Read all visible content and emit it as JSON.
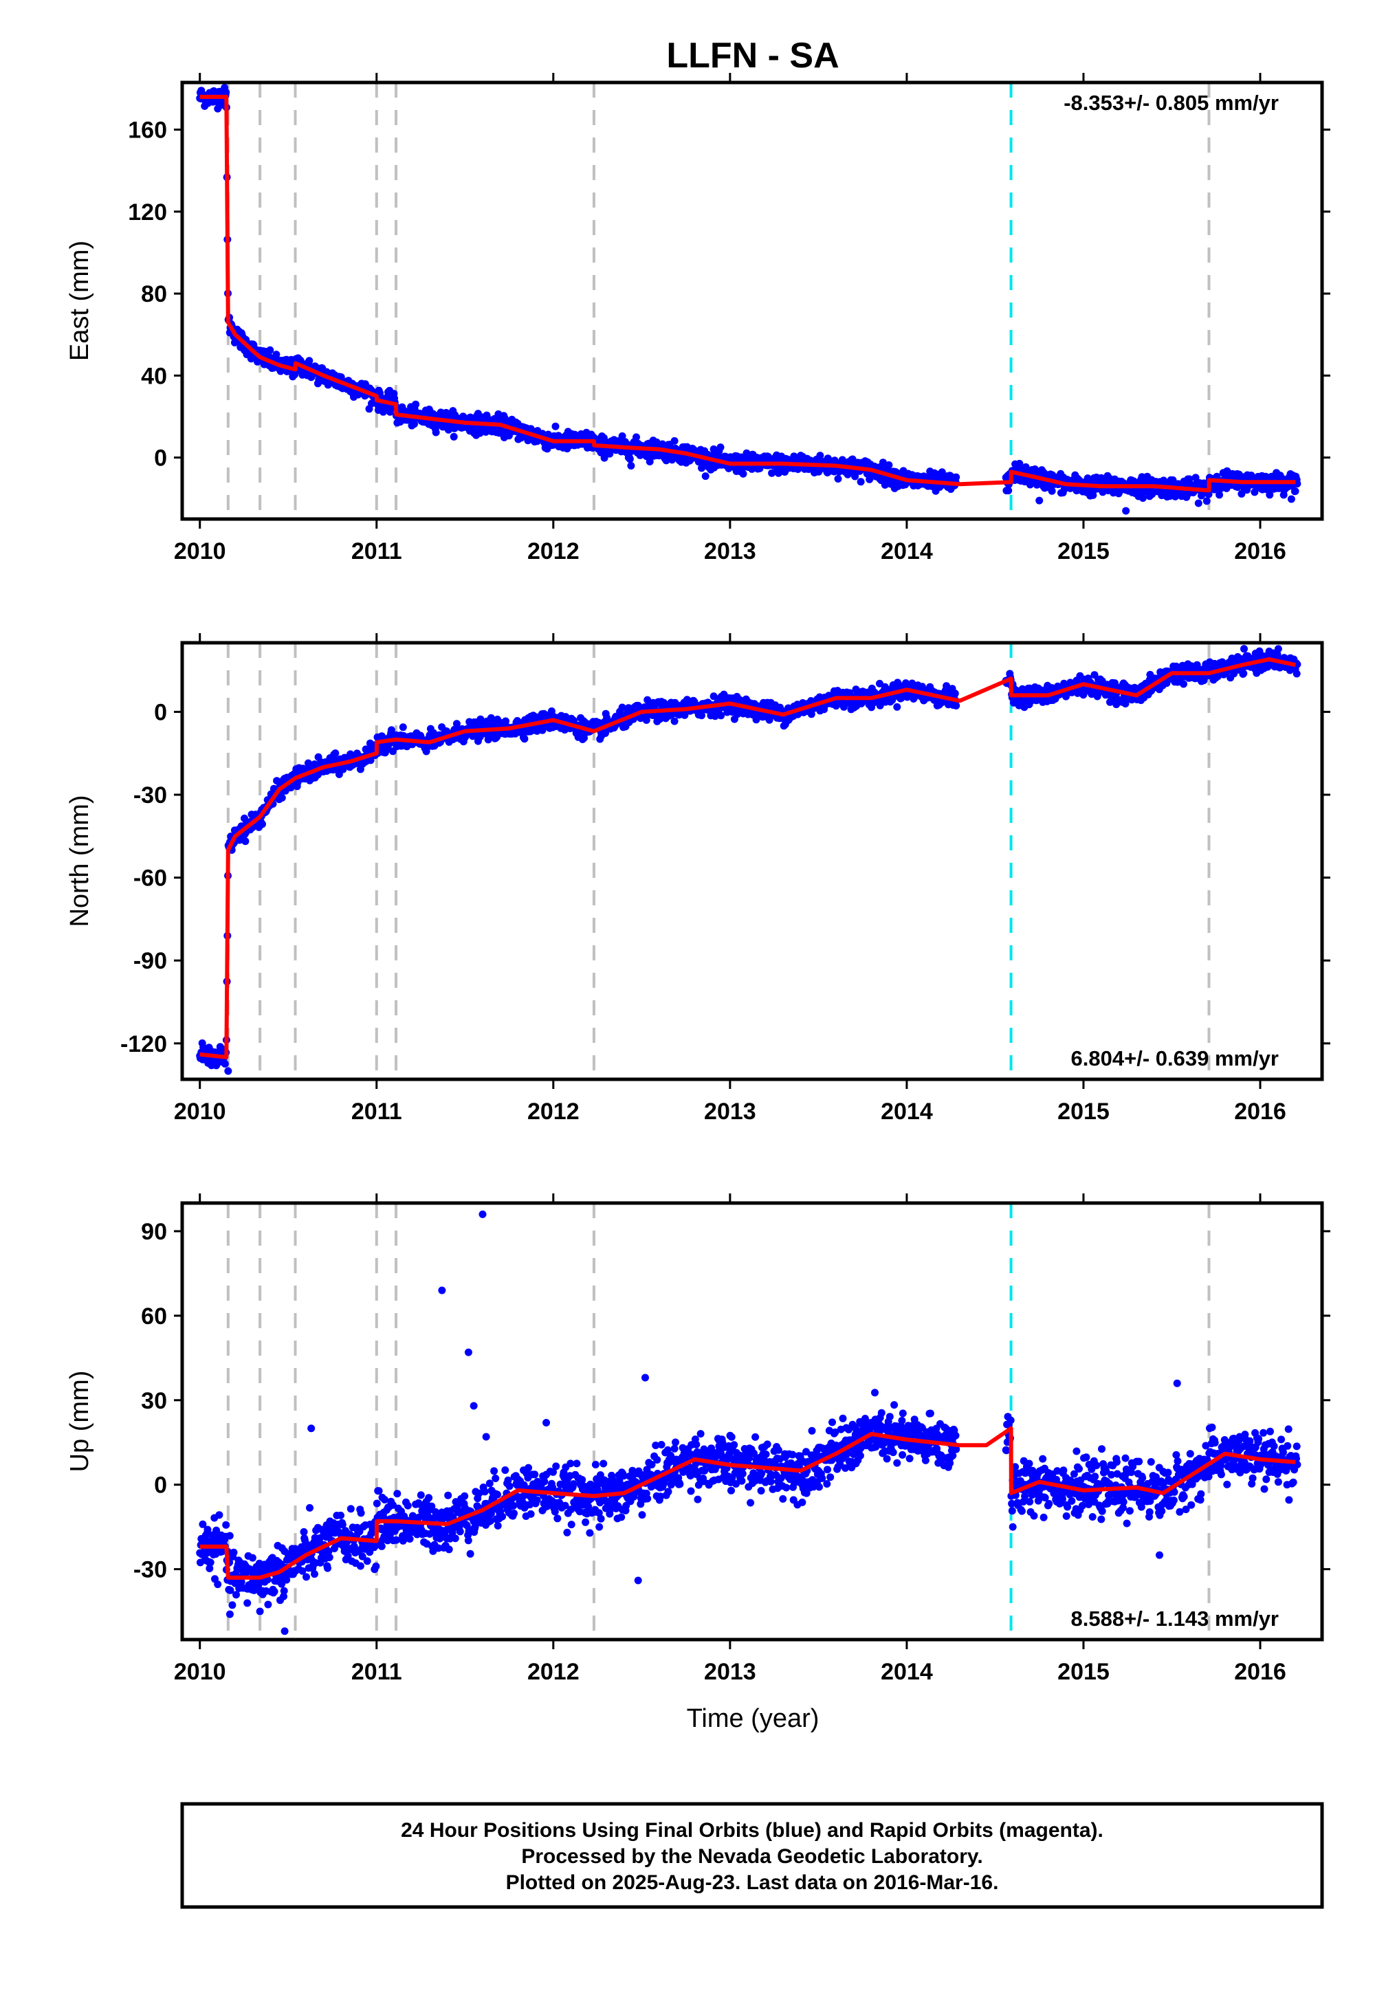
{
  "chart_data": {
    "type": "scatter",
    "title": "LLFN - SA",
    "xlabel": "Time (year)",
    "x_ticks": [
      "2010",
      "2011",
      "2012",
      "2013",
      "2014",
      "2015",
      "2016"
    ],
    "x_range": [
      2009.9,
      2016.35
    ],
    "colors": {
      "observations": "#0000ff",
      "model": "#ff0000",
      "equipment_change_lines": "#c0c0c0",
      "earthquake_line": "#00e5ee",
      "frame": "#000000"
    },
    "event_lines": {
      "gray_dashed": [
        2010.16,
        2010.34,
        2010.54,
        2011.0,
        2011.11,
        2012.23,
        2015.71
      ],
      "cyan_dashed": [
        2014.59
      ]
    },
    "panels": [
      {
        "ylabel": "East (mm)",
        "ylim": [
          -30,
          183
        ],
        "y_ticks": [
          "160",
          "120",
          "80",
          "40",
          "0"
        ],
        "y_tick_values": [
          160,
          120,
          80,
          40,
          0
        ],
        "rate_label": "-8.353+/- 0.805 mm/yr",
        "rate_position": "top-right",
        "noise_sd": 2.2,
        "model_series": [
          [
            2010.0,
            176
          ],
          [
            2010.15,
            176
          ],
          [
            2010.16,
            66
          ],
          [
            2010.2,
            60
          ],
          [
            2010.3,
            52
          ],
          [
            2010.34,
            49
          ],
          [
            2010.45,
            45
          ],
          [
            2010.54,
            43
          ],
          [
            2010.541,
            46
          ],
          [
            2010.7,
            40
          ],
          [
            2010.85,
            35
          ],
          [
            2011.0,
            30
          ],
          [
            2011.001,
            28
          ],
          [
            2011.11,
            26
          ],
          [
            2011.111,
            21
          ],
          [
            2011.3,
            19
          ],
          [
            2011.5,
            17
          ],
          [
            2011.7,
            16
          ],
          [
            2011.85,
            12
          ],
          [
            2012.0,
            8
          ],
          [
            2012.23,
            8
          ],
          [
            2012.231,
            6
          ],
          [
            2012.4,
            5
          ],
          [
            2012.6,
            4
          ],
          [
            2012.75,
            2
          ],
          [
            2013.0,
            -3
          ],
          [
            2013.3,
            -3
          ],
          [
            2013.6,
            -4
          ],
          [
            2013.8,
            -6
          ],
          [
            2014.0,
            -11
          ],
          [
            2014.3,
            -13
          ],
          [
            2014.59,
            -12
          ],
          [
            2014.591,
            -7
          ],
          [
            2014.7,
            -9
          ],
          [
            2014.9,
            -13
          ],
          [
            2015.1,
            -14
          ],
          [
            2015.4,
            -14
          ],
          [
            2015.7,
            -16
          ],
          [
            2015.71,
            -16
          ],
          [
            2015.711,
            -11
          ],
          [
            2015.9,
            -12
          ],
          [
            2016.2,
            -12
          ]
        ],
        "gaps": [
          [
            2014.28,
            2014.56
          ]
        ],
        "outliers": [
          [
            2015.24,
            -26
          ],
          [
            2012.44,
            -4
          ],
          [
            2013.4,
            1
          ],
          [
            2014.75,
            -21
          ]
        ]
      },
      {
        "ylabel": "North (mm)",
        "ylim": [
          -133,
          25
        ],
        "y_ticks": [
          "0",
          "-30",
          "-60",
          "-90",
          "-120"
        ],
        "y_tick_values": [
          0,
          -30,
          -60,
          -90,
          -120
        ],
        "rate_label": "6.804+/- 0.639 mm/yr",
        "rate_position": "bottom-right",
        "noise_sd": 1.6,
        "model_series": [
          [
            2010.0,
            -124
          ],
          [
            2010.15,
            -125
          ],
          [
            2010.16,
            -50
          ],
          [
            2010.2,
            -45
          ],
          [
            2010.34,
            -38
          ],
          [
            2010.45,
            -28
          ],
          [
            2010.54,
            -24
          ],
          [
            2010.7,
            -20
          ],
          [
            2010.85,
            -18
          ],
          [
            2011.0,
            -15
          ],
          [
            2011.001,
            -11
          ],
          [
            2011.11,
            -10
          ],
          [
            2011.3,
            -11
          ],
          [
            2011.5,
            -7
          ],
          [
            2011.75,
            -6
          ],
          [
            2012.0,
            -3
          ],
          [
            2012.23,
            -7
          ],
          [
            2012.5,
            0
          ],
          [
            2012.75,
            1
          ],
          [
            2013.0,
            3
          ],
          [
            2013.3,
            -1
          ],
          [
            2013.6,
            5
          ],
          [
            2013.8,
            5
          ],
          [
            2014.0,
            8
          ],
          [
            2014.3,
            4
          ],
          [
            2014.59,
            12
          ],
          [
            2014.591,
            6
          ],
          [
            2014.8,
            6
          ],
          [
            2015.0,
            10
          ],
          [
            2015.3,
            6
          ],
          [
            2015.5,
            14
          ],
          [
            2015.71,
            14
          ],
          [
            2015.9,
            17
          ],
          [
            2016.05,
            19
          ],
          [
            2016.2,
            17
          ]
        ],
        "gaps": [
          [
            2014.28,
            2014.56
          ]
        ],
        "outliers": [
          [
            2010.16,
            -130
          ]
        ]
      },
      {
        "ylabel": "Up (mm)",
        "ylim": [
          -55,
          100
        ],
        "y_ticks": [
          "90",
          "60",
          "30",
          "0",
          "-30"
        ],
        "y_tick_values": [
          90,
          60,
          30,
          0,
          -30
        ],
        "rate_label": "8.588+/- 1.143 mm/yr",
        "rate_position": "bottom-right",
        "noise_sd": 4.5,
        "model_series": [
          [
            2010.0,
            -22
          ],
          [
            2010.15,
            -22
          ],
          [
            2010.16,
            -33
          ],
          [
            2010.34,
            -33
          ],
          [
            2010.45,
            -31
          ],
          [
            2010.6,
            -25
          ],
          [
            2010.8,
            -19
          ],
          [
            2011.0,
            -20
          ],
          [
            2011.001,
            -13
          ],
          [
            2011.11,
            -13
          ],
          [
            2011.4,
            -14
          ],
          [
            2011.6,
            -9
          ],
          [
            2011.8,
            -2
          ],
          [
            2012.0,
            -3
          ],
          [
            2012.23,
            -4
          ],
          [
            2012.4,
            -3
          ],
          [
            2012.6,
            3
          ],
          [
            2012.8,
            9
          ],
          [
            2013.0,
            7
          ],
          [
            2013.4,
            5
          ],
          [
            2013.6,
            11
          ],
          [
            2013.8,
            18
          ],
          [
            2014.0,
            16
          ],
          [
            2014.3,
            14
          ],
          [
            2014.45,
            14
          ],
          [
            2014.59,
            20
          ],
          [
            2014.591,
            -3
          ],
          [
            2014.75,
            1
          ],
          [
            2015.0,
            -2
          ],
          [
            2015.3,
            -1
          ],
          [
            2015.45,
            -3
          ],
          [
            2015.6,
            3
          ],
          [
            2015.8,
            11
          ],
          [
            2016.0,
            9
          ],
          [
            2016.2,
            8
          ]
        ],
        "gaps": [
          [
            2014.28,
            2014.56
          ]
        ],
        "outliers": [
          [
            2011.6,
            96
          ],
          [
            2011.37,
            69
          ],
          [
            2011.52,
            47
          ],
          [
            2012.52,
            38
          ],
          [
            2015.53,
            36
          ],
          [
            2011.55,
            28
          ],
          [
            2010.63,
            20
          ],
          [
            2011.62,
            17
          ],
          [
            2011.96,
            22
          ],
          [
            2012.48,
            -34
          ],
          [
            2010.48,
            -52
          ],
          [
            2010.17,
            -46
          ],
          [
            2010.34,
            -45
          ],
          [
            2012.26,
            -15
          ],
          [
            2014.6,
            -15
          ],
          [
            2015.43,
            -25
          ]
        ]
      }
    ]
  },
  "footer": {
    "line1": "24 Hour Positions Using Final Orbits (blue) and Rapid Orbits (magenta).",
    "line2": "Processed by the Nevada Geodetic Laboratory.",
    "line3": "Plotted on 2025-Aug-23. Last data on 2016-Mar-16."
  }
}
